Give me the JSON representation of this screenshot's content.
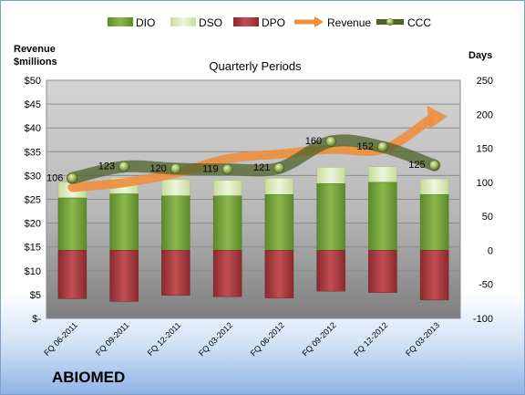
{
  "chart_data": {
    "type": "bar",
    "title": "Quarterly Periods",
    "company": "ABIOMED",
    "left_axis_title": [
      "Revenue",
      "$millions"
    ],
    "right_axis_title": "Days",
    "left_ticks": [
      "$-",
      "$5",
      "$10",
      "$15",
      "$20",
      "$25",
      "$30",
      "$35",
      "$40",
      "$45",
      "$50"
    ],
    "left_range": [
      0,
      50
    ],
    "right_ticks": [
      "-100",
      "-50",
      "0",
      "50",
      "100",
      "150",
      "200",
      "250"
    ],
    "right_range": [
      -100,
      250
    ],
    "grid": true,
    "legend_position": "top",
    "categories": [
      "FQ 06-2011",
      "FQ 09-2011",
      "FQ 12-2011",
      "FQ 03-2012",
      "FQ 06-2012",
      "FQ 09-2012",
      "FQ 12-2012",
      "FQ 03-2013"
    ],
    "series": [
      {
        "name": "DIO",
        "type": "stacked-bar",
        "axis": "right",
        "color": "#76a03a",
        "values": [
          77,
          83,
          80,
          80,
          82,
          98,
          100,
          82
        ]
      },
      {
        "name": "DSO",
        "type": "stacked-bar",
        "axis": "right",
        "color": "#d9e8b6",
        "values": [
          23,
          24,
          24,
          23,
          24,
          24,
          23,
          23
        ]
      },
      {
        "name": "DPO",
        "type": "bar-negative",
        "axis": "right",
        "color": "#a83a3e",
        "values": [
          -71,
          -75,
          -66,
          -68,
          -70,
          -60,
          -62,
          -73
        ]
      },
      {
        "name": "Revenue",
        "type": "line-arrow",
        "axis": "left",
        "color": "#ed8e3e",
        "values": [
          27.5,
          28.5,
          30.5,
          33.5,
          34.5,
          35.5,
          35.5,
          42
        ]
      },
      {
        "name": "CCC",
        "type": "line",
        "axis": "right",
        "color": "#4f6228",
        "values": [
          106,
          123,
          120,
          119,
          121,
          160,
          152,
          125
        ]
      }
    ]
  }
}
